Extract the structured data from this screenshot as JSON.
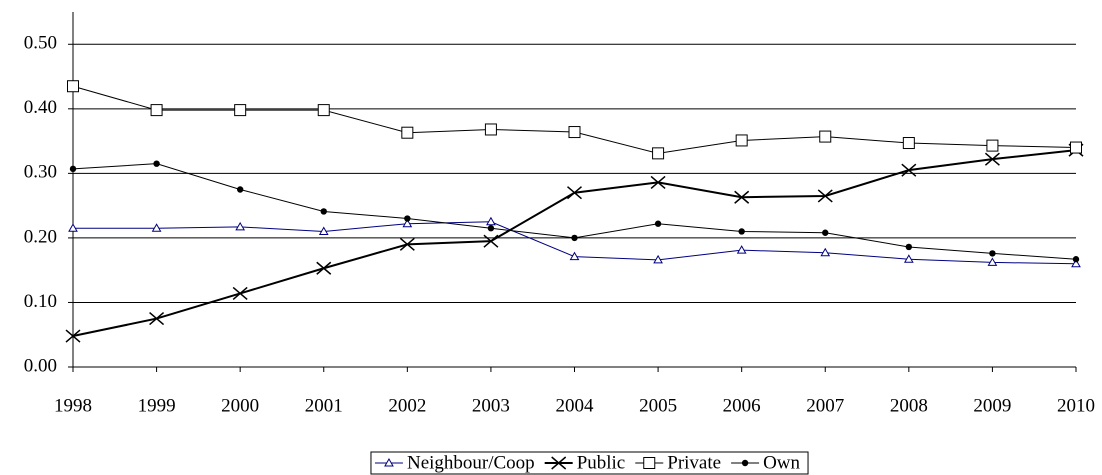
{
  "chart_data": {
    "type": "line",
    "x": [
      1998,
      1999,
      2000,
      2001,
      2002,
      2003,
      2004,
      2005,
      2006,
      2007,
      2008,
      2009,
      2010
    ],
    "xlim": [
      1998,
      2010
    ],
    "xticks": [
      1998,
      1999,
      2000,
      2001,
      2002,
      2003,
      2004,
      2005,
      2006,
      2007,
      2008,
      2009,
      2010
    ],
    "ylim": [
      0,
      0.55
    ],
    "yticks": [
      {
        "value": 0,
        "label": "0.00"
      },
      {
        "value": 0.1,
        "label": "0.10"
      },
      {
        "value": 0.2,
        "label": "0.20"
      },
      {
        "value": 0.3,
        "label": "0.30"
      },
      {
        "value": 0.4,
        "label": "0.40"
      },
      {
        "value": 0.5,
        "label": "0.50"
      }
    ],
    "grid": true,
    "legend": "bottom",
    "series": [
      {
        "name": "Neighbour/Coop",
        "color": "#000080",
        "marker": "triangle",
        "line_width": 1,
        "values": [
          0.215,
          0.215,
          0.217,
          0.21,
          0.222,
          0.225,
          0.171,
          0.166,
          0.181,
          0.177,
          0.167,
          0.162,
          0.16
        ]
      },
      {
        "name": "Public",
        "color": "#000000",
        "marker": "x",
        "line_width": 2,
        "values": [
          0.048,
          0.075,
          0.114,
          0.153,
          0.19,
          0.195,
          0.27,
          0.286,
          0.263,
          0.265,
          0.305,
          0.322,
          0.336
        ]
      },
      {
        "name": "Private",
        "color": "#000000",
        "marker": "square",
        "line_width": 1,
        "values": [
          0.435,
          0.398,
          0.398,
          0.398,
          0.363,
          0.368,
          0.364,
          0.331,
          0.351,
          0.357,
          0.347,
          0.343,
          0.34
        ]
      },
      {
        "name": "Own",
        "color": "#000000",
        "marker": "circle",
        "line_width": 1,
        "values": [
          0.307,
          0.315,
          0.275,
          0.241,
          0.23,
          0.215,
          0.2,
          0.222,
          0.21,
          0.208,
          0.186,
          0.176,
          0.167
        ]
      }
    ]
  }
}
